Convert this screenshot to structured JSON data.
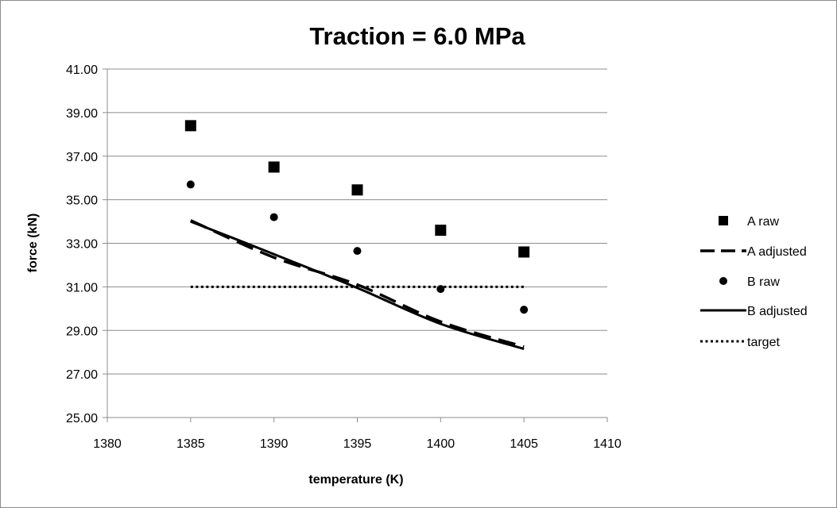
{
  "chart_data": {
    "type": "scatter",
    "title": "Traction = 6.0 MPa",
    "xlabel": "temperature (K)",
    "ylabel": "force (kN)",
    "xlim": [
      1380,
      1410
    ],
    "ylim": [
      25,
      41
    ],
    "x_ticks": [
      "1380",
      "1385",
      "1390",
      "1395",
      "1400",
      "1405",
      "1410"
    ],
    "y_ticks": [
      "25.00",
      "27.00",
      "29.00",
      "31.00",
      "33.00",
      "35.00",
      "37.00",
      "39.00",
      "41.00"
    ],
    "grid": "horizontal",
    "legend_position": "right",
    "series": [
      {
        "name": "A raw",
        "style": "square-marker",
        "x": [
          1385,
          1390,
          1395,
          1400,
          1405
        ],
        "y": [
          38.4,
          36.5,
          35.45,
          33.6,
          32.6
        ]
      },
      {
        "name": "A adjusted",
        "style": "dashed-line",
        "x": [
          1385,
          1390,
          1395,
          1400,
          1405
        ],
        "y": [
          34.05,
          32.35,
          31.1,
          29.4,
          28.25
        ]
      },
      {
        "name": "B raw",
        "style": "circle-marker",
        "x": [
          1385,
          1390,
          1395,
          1400,
          1405
        ],
        "y": [
          35.7,
          34.2,
          32.65,
          30.9,
          29.95
        ]
      },
      {
        "name": "B adjusted",
        "style": "solid-line",
        "x": [
          1385,
          1390,
          1395,
          1400,
          1405
        ],
        "y": [
          34.0,
          32.5,
          30.95,
          29.3,
          28.15
        ]
      },
      {
        "name": "target",
        "style": "dotted-line",
        "x": [
          1385,
          1405
        ],
        "y": [
          31.0,
          31.0
        ]
      }
    ]
  }
}
